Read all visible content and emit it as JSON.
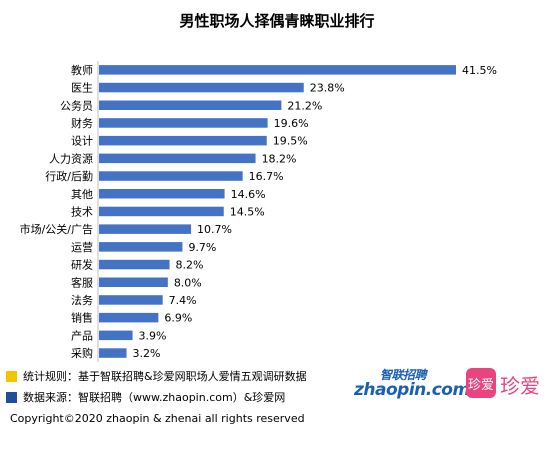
{
  "title": "男性职场人择偶青睐职业排行",
  "chart_data": {
    "type": "bar",
    "orientation": "horizontal",
    "categories": [
      "教师",
      "医生",
      "公务员",
      "财务",
      "设计",
      "人力资源",
      "行政/后勤",
      "其他",
      "技术",
      "市场/公关/广告",
      "运营",
      "研发",
      "客服",
      "法务",
      "销售",
      "产品",
      "采购"
    ],
    "values": [
      41.5,
      23.8,
      21.2,
      19.6,
      19.5,
      18.2,
      16.7,
      14.6,
      14.5,
      10.7,
      9.7,
      8.2,
      8.0,
      7.4,
      6.9,
      3.9,
      3.2
    ],
    "value_labels": [
      "41.5%",
      "23.8%",
      "21.2%",
      "19.6%",
      "19.5%",
      "18.2%",
      "16.7%",
      "14.6%",
      "14.5%",
      "10.7%",
      "9.7%",
      "8.2%",
      "8.0%",
      "7.4%",
      "6.9%",
      "3.9%",
      "3.2%"
    ],
    "bar_color": "#4472c4",
    "grid": false
  },
  "notes": [
    {
      "text": "统计规则：基于智联招聘&珍爱网职场人爱情五观调研数据",
      "color": "#f2c500"
    },
    {
      "text": "数据来源：智联招聘（www.zhaopin.com）&珍爱网",
      "color": "#1f4e9a"
    }
  ],
  "copyright": "Copyright©2020 zhaopin & zhenai  all rights reserved",
  "logos": {
    "zhaopin_top": "智联招聘",
    "zhaopin_main": "zhaopin.com",
    "zhenai_mark": "珍爱",
    "zhenai_text": "珍爱"
  }
}
